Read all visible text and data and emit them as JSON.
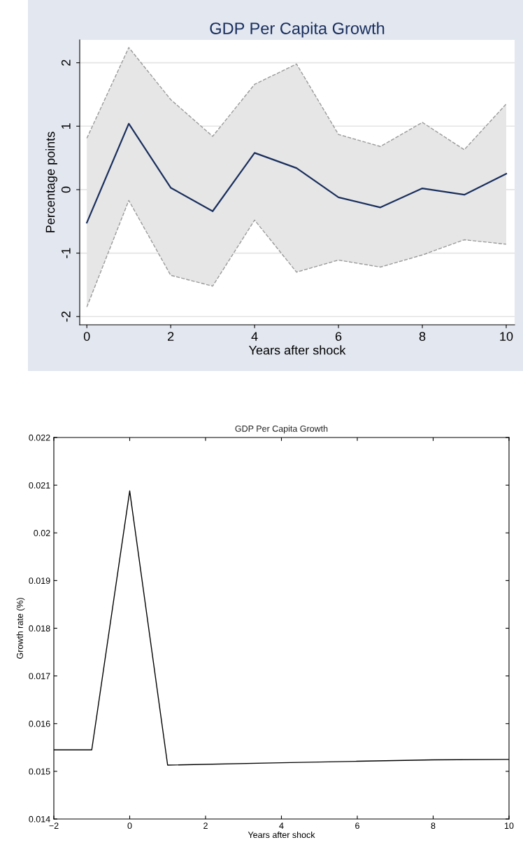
{
  "chart_data": [
    {
      "type": "line",
      "title": "GDP Per Capita Growth",
      "xlabel": "Years after shock",
      "ylabel": "Percentage points",
      "x": [
        0,
        1,
        2,
        3,
        4,
        5,
        6,
        7,
        8,
        9,
        10
      ],
      "series": [
        {
          "color": "#1a2f5e",
          "values": [
            -0.52,
            1.04,
            0.03,
            -0.34,
            0.58,
            0.34,
            -0.12,
            -0.28,
            0.02,
            -0.08,
            0.25
          ],
          "lower": [
            -1.85,
            -0.17,
            -1.35,
            -1.52,
            -0.48,
            -1.3,
            -1.11,
            -1.22,
            -1.03,
            -0.79,
            -0.86
          ],
          "upper": [
            0.81,
            2.24,
            1.42,
            0.84,
            1.66,
            1.98,
            0.87,
            0.68,
            1.06,
            0.63,
            1.35
          ]
        },
        {
          "color": "#9a9a9a",
          "line_style": "dashed",
          "values": [
            0.81,
            2.24,
            1.42,
            0.84,
            1.66,
            1.98,
            0.87,
            0.68,
            1.06,
            0.63,
            1.35
          ]
        },
        {
          "color": "#9a9a9a",
          "line_style": "dashed",
          "values": [
            -1.85,
            -0.17,
            -1.35,
            -1.52,
            -0.48,
            -1.3,
            -1.11,
            -1.22,
            -1.03,
            -0.79,
            -0.86
          ]
        }
      ],
      "xlim": [
        -0.17,
        10.2
      ],
      "ylim": [
        -2.13,
        2.36
      ],
      "xticks": [
        0,
        2,
        4,
        6,
        8,
        10
      ],
      "yticks": [
        -2,
        -1,
        0,
        1,
        2
      ],
      "grid": "y",
      "line_style": "solid"
    },
    {
      "type": "line",
      "title": "GDP Per Capita Growth",
      "xlabel": "Years after shock",
      "ylabel": "Growth rate (%)",
      "x": [
        -2,
        -1,
        0,
        1,
        4,
        6,
        8,
        10
      ],
      "series": [
        {
          "color": "#000000",
          "values": [
            0.01545,
            0.01545,
            0.02088,
            0.01513,
            0.01518,
            0.01521,
            0.01524,
            0.01525
          ]
        }
      ],
      "xlim": [
        -2,
        10
      ],
      "ylim": [
        0.014,
        0.022
      ],
      "xticks": [
        -2,
        0,
        2,
        4,
        6,
        8,
        10
      ],
      "yticks": [
        0.014,
        0.015,
        0.016,
        0.017,
        0.018,
        0.019,
        0.02,
        0.021,
        0.022
      ],
      "grid": false
    }
  ]
}
